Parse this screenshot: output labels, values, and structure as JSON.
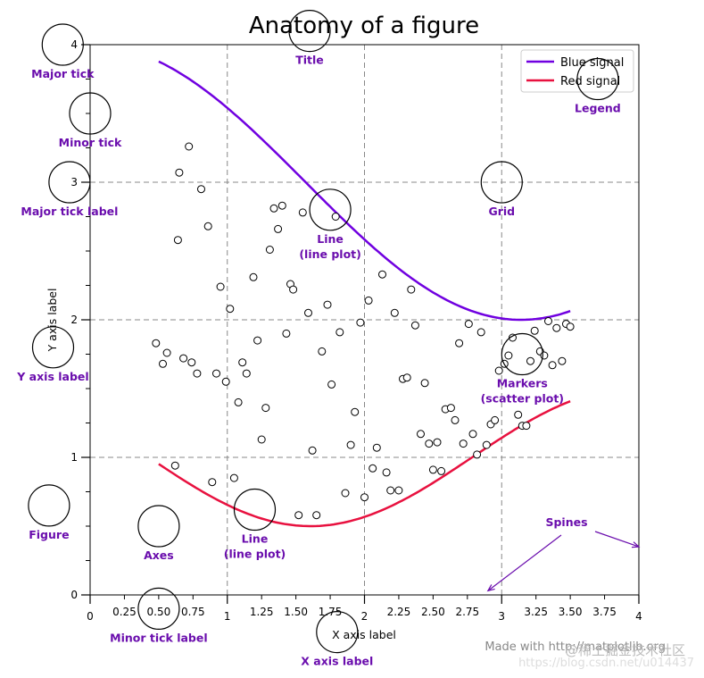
{
  "chart_data": {
    "type": "line+scatter",
    "title": "Anatomy of a figure",
    "xlabel": "X axis label",
    "ylabel": "Y axis label",
    "xlim": [
      0,
      4
    ],
    "ylim": [
      0,
      4
    ],
    "x_major_ticks": [
      0,
      1,
      2,
      3,
      4
    ],
    "x_minor_ticks": [
      0.25,
      0.5,
      0.75,
      1.25,
      1.5,
      1.75,
      2.25,
      2.5,
      2.75,
      3.25,
      3.5,
      3.75
    ],
    "x_major_tick_labels": [
      "0",
      "1",
      "2",
      "3",
      "4"
    ],
    "x_minor_tick_labels": [
      "0.25",
      "0.50",
      "0.75",
      "1.25",
      "1.50",
      "1.75",
      "2.25",
      "2.50",
      "2.75",
      "3.25",
      "3.50",
      "3.75"
    ],
    "y_major_ticks": [
      0,
      1,
      2,
      3,
      4
    ],
    "y_minor_ticks": [
      0.25,
      0.5,
      0.75,
      1.25,
      1.5,
      1.75,
      2.25,
      2.5,
      2.75,
      3.25,
      3.5,
      3.75
    ],
    "y_major_tick_labels": [
      "0",
      "1",
      "2",
      "3",
      "4"
    ],
    "grid": true,
    "legend": {
      "placement": "top-right",
      "entries": [
        {
          "label": "Blue signal",
          "color": "#7000e0"
        },
        {
          "label": "Red signal",
          "color": "#e8113f"
        }
      ]
    },
    "series": [
      {
        "name": "Blue signal",
        "type": "line",
        "color": "#7000e0",
        "x_range": [
          0.5,
          3.5
        ],
        "formula": "3 + cos(x)",
        "points": 120
      },
      {
        "name": "Red signal",
        "type": "line",
        "color": "#e8113f",
        "x_range": [
          0.5,
          3.5
        ],
        "formula": "1 + cos(1 + x/0.75)/2",
        "points": 120
      },
      {
        "name": "Scatter",
        "type": "scatter",
        "points": [
          [
            0.48,
            1.83
          ],
          [
            0.53,
            1.68
          ],
          [
            0.56,
            1.76
          ],
          [
            0.62,
            0.94
          ],
          [
            0.64,
            2.58
          ],
          [
            0.65,
            3.07
          ],
          [
            0.68,
            1.72
          ],
          [
            0.72,
            3.26
          ],
          [
            0.74,
            1.69
          ],
          [
            0.78,
            1.61
          ],
          [
            0.81,
            2.95
          ],
          [
            0.86,
            2.68
          ],
          [
            0.89,
            0.82
          ],
          [
            0.92,
            1.61
          ],
          [
            0.95,
            2.24
          ],
          [
            0.99,
            1.55
          ],
          [
            1.02,
            2.08
          ],
          [
            1.05,
            0.85
          ],
          [
            1.08,
            1.4
          ],
          [
            1.11,
            1.69
          ],
          [
            1.14,
            1.61
          ],
          [
            1.19,
            2.31
          ],
          [
            1.22,
            1.85
          ],
          [
            1.25,
            1.13
          ],
          [
            1.28,
            1.36
          ],
          [
            1.31,
            2.51
          ],
          [
            1.34,
            2.81
          ],
          [
            1.37,
            2.66
          ],
          [
            1.4,
            2.83
          ],
          [
            1.43,
            1.9
          ],
          [
            1.46,
            2.26
          ],
          [
            1.48,
            2.22
          ],
          [
            1.52,
            0.58
          ],
          [
            1.55,
            2.78
          ],
          [
            1.59,
            2.05
          ],
          [
            1.62,
            1.05
          ],
          [
            1.65,
            0.58
          ],
          [
            1.69,
            1.77
          ],
          [
            1.73,
            2.11
          ],
          [
            1.76,
            1.53
          ],
          [
            1.79,
            2.75
          ],
          [
            1.82,
            1.91
          ],
          [
            1.86,
            0.74
          ],
          [
            1.9,
            1.09
          ],
          [
            1.93,
            1.33
          ],
          [
            1.97,
            1.98
          ],
          [
            2.0,
            0.71
          ],
          [
            2.03,
            2.14
          ],
          [
            2.06,
            0.92
          ],
          [
            2.09,
            1.07
          ],
          [
            2.13,
            2.33
          ],
          [
            2.16,
            0.89
          ],
          [
            2.19,
            0.76
          ],
          [
            2.22,
            2.05
          ],
          [
            2.25,
            0.76
          ],
          [
            2.28,
            1.57
          ],
          [
            2.31,
            1.58
          ],
          [
            2.34,
            2.22
          ],
          [
            2.37,
            1.96
          ],
          [
            2.41,
            1.17
          ],
          [
            2.44,
            1.54
          ],
          [
            2.47,
            1.1
          ],
          [
            2.5,
            0.91
          ],
          [
            2.53,
            1.11
          ],
          [
            2.56,
            0.9
          ],
          [
            2.59,
            1.35
          ],
          [
            2.63,
            1.36
          ],
          [
            2.66,
            1.27
          ],
          [
            2.69,
            1.83
          ],
          [
            2.72,
            1.1
          ],
          [
            2.76,
            1.97
          ],
          [
            2.79,
            1.17
          ],
          [
            2.82,
            1.02
          ],
          [
            2.85,
            1.91
          ],
          [
            2.89,
            1.09
          ],
          [
            2.92,
            1.24
          ],
          [
            2.95,
            1.27
          ],
          [
            2.98,
            1.63
          ],
          [
            3.02,
            1.68
          ],
          [
            3.05,
            1.74
          ],
          [
            3.08,
            1.87
          ],
          [
            3.12,
            1.31
          ],
          [
            3.15,
            1.23
          ],
          [
            3.18,
            1.23
          ],
          [
            3.21,
            1.7
          ],
          [
            3.24,
            1.92
          ],
          [
            3.28,
            1.77
          ],
          [
            3.31,
            1.74
          ],
          [
            3.34,
            1.99
          ],
          [
            3.37,
            1.67
          ],
          [
            3.4,
            1.94
          ],
          [
            3.44,
            1.7
          ],
          [
            3.47,
            1.97
          ],
          [
            3.5,
            1.95
          ]
        ]
      }
    ],
    "annotations": [
      {
        "label": "Major tick",
        "target": [
          -0.2,
          4.0
        ]
      },
      {
        "label": "Minor tick",
        "target": [
          0,
          3.5
        ]
      },
      {
        "label": "Major tick label",
        "target": [
          -0.15,
          3.0
        ]
      },
      {
        "label": "X axis label",
        "target": [
          1.8,
          -0.27
        ]
      },
      {
        "label": "Minor tick label",
        "target": [
          0.5,
          -0.1
        ]
      },
      {
        "label": "Y axis label",
        "target": [
          -0.27,
          1.8
        ]
      },
      {
        "label": "Title",
        "target": [
          1.6,
          4.1
        ]
      },
      {
        "label": "Legend",
        "target": [
          3.7,
          3.75
        ]
      },
      {
        "label": "Grid",
        "target": [
          3,
          3
        ]
      },
      {
        "label": "Line\n(line plot)",
        "target": [
          1.75,
          2.8
        ]
      },
      {
        "label": "Line\n(line plot)",
        "target": [
          1.2,
          0.62
        ]
      },
      {
        "label": "Markers\n(scatter plot)",
        "target": [
          3.15,
          1.75
        ]
      },
      {
        "label": "Axes",
        "target": [
          0.5,
          0.5
        ]
      },
      {
        "label": "Figure",
        "target": [
          -0.3,
          0.65
        ]
      },
      {
        "label": "Spines",
        "arrow_ends": [
          [
            2.9,
            0.03
          ],
          [
            4.0,
            0.35
          ]
        ]
      }
    ],
    "annotation_color": "#6a0dad"
  },
  "footer": {
    "credit": "Made with http://matplotlib.org",
    "watermark": "@稀土掘金技术社区",
    "url_watermark": "https://blog.csdn.net/u014437"
  }
}
